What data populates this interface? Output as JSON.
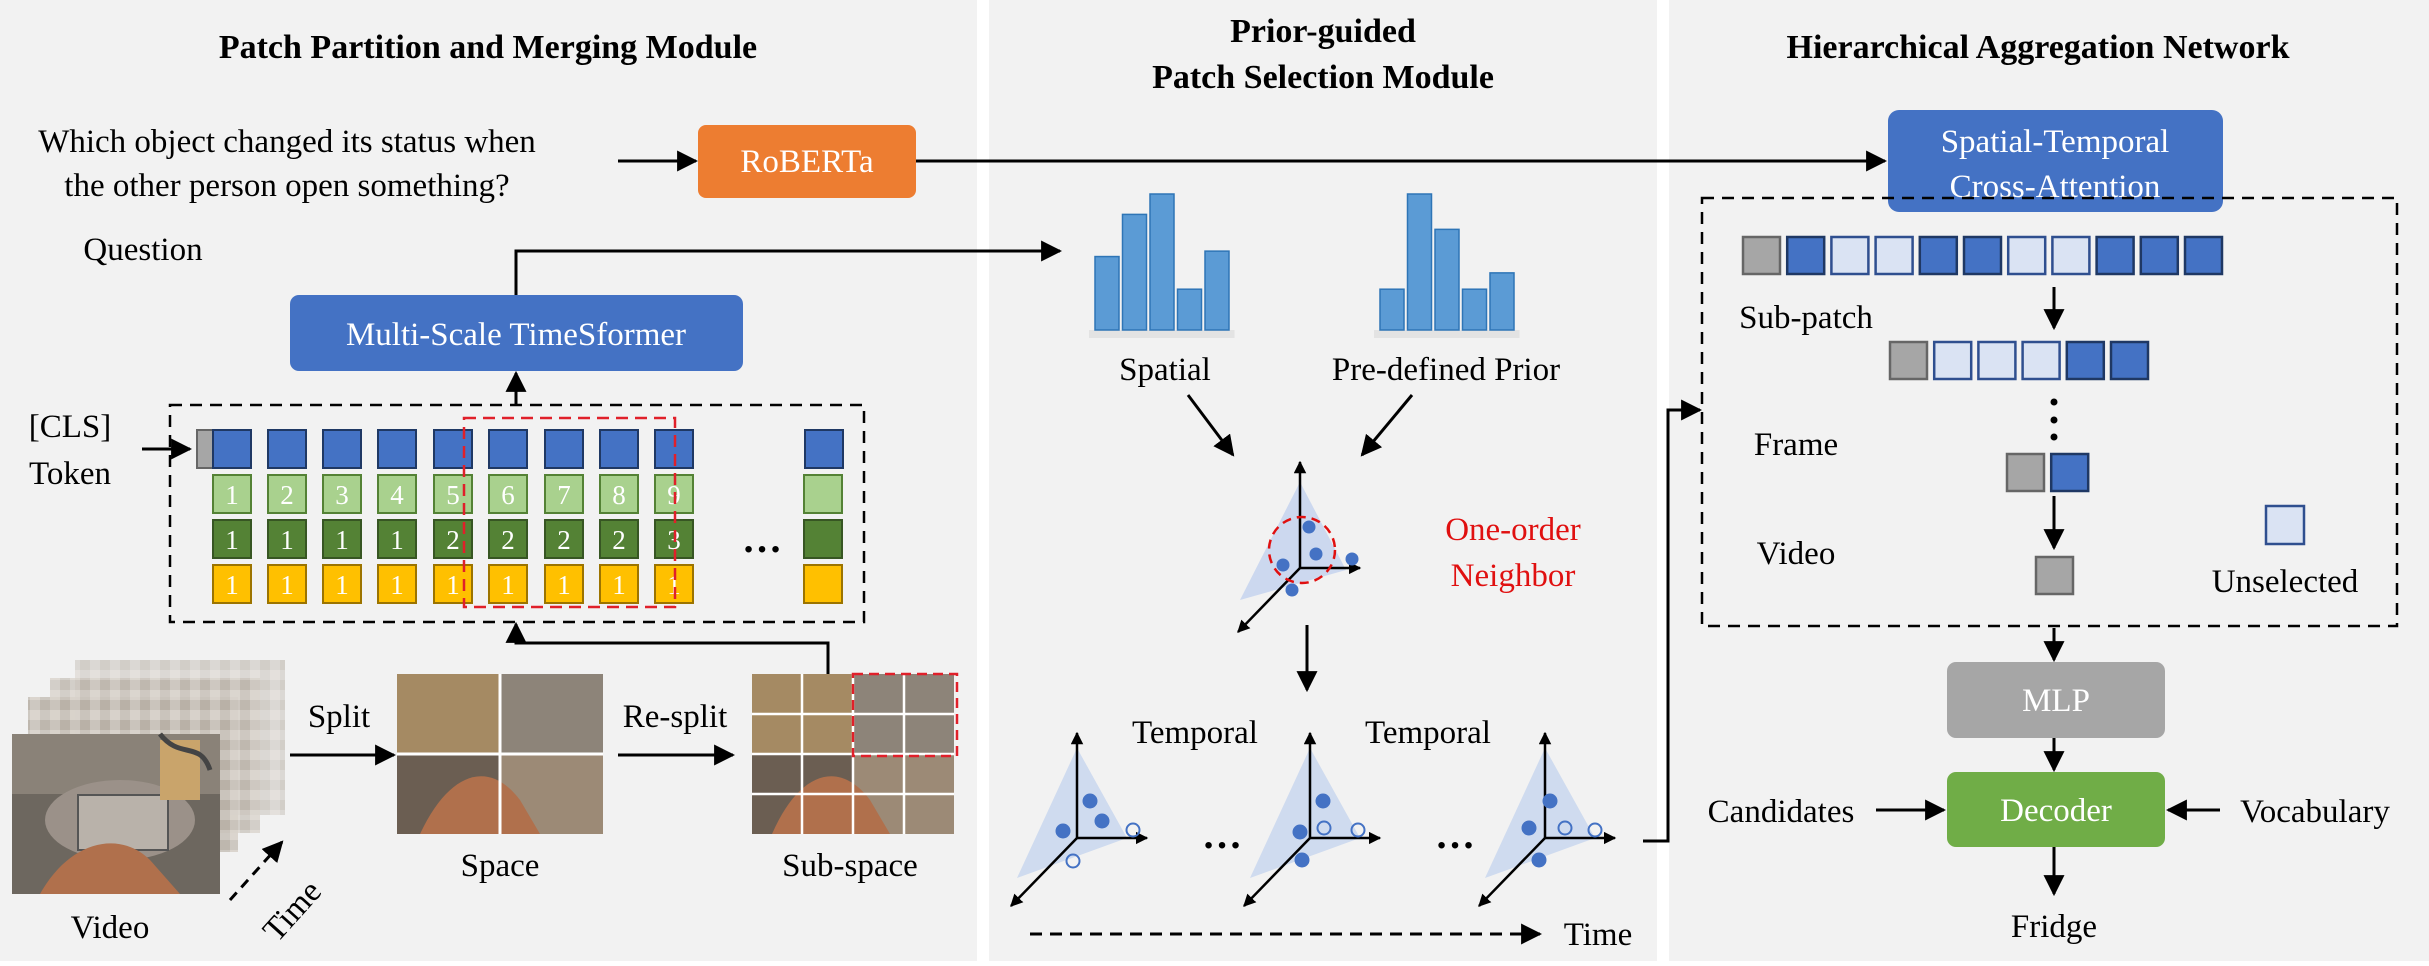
{
  "panels": {
    "left": {
      "title": "Patch Partition and Merging Module"
    },
    "middle": {
      "title_line1": "Prior-guided",
      "title_line2": "Patch Selection Module"
    },
    "right": {
      "title": "Hierarchical Aggregation Network"
    }
  },
  "question": {
    "line1": "Which object changed its status when",
    "line2": "the other person open something?",
    "label": "Question"
  },
  "boxes": {
    "roberta": "RoBERTa",
    "timesformer": "Multi-Scale TimeSformer",
    "cross_attention_line1": "Spatial-Temporal",
    "cross_attention_line2": "Cross-Attention",
    "mlp": "MLP",
    "decoder": "Decoder"
  },
  "tokens": {
    "cls_line1": "[CLS]",
    "cls_line2": "Token",
    "row_light": [
      "1",
      "2",
      "3",
      "4",
      "5",
      "6",
      "7",
      "8",
      "9"
    ],
    "row_mid": [
      "1",
      "1",
      "1",
      "1",
      "2",
      "2",
      "2",
      "2",
      "3"
    ],
    "row_yellow": [
      "1",
      "1",
      "1",
      "1",
      "1",
      "1",
      "1",
      "1",
      "1"
    ],
    "ellipsis": "…"
  },
  "video": {
    "video_label": "Video",
    "time_label": "Time",
    "split_label": "Split",
    "space_label": "Space",
    "resplit_label": "Re-split",
    "subspace_label": "Sub-space"
  },
  "selection": {
    "spatial_label": "Spatial",
    "prior_label": "Pre-defined Prior",
    "neighbor_line1": "One-order",
    "neighbor_line2": "Neighbor",
    "temporal_label_1": "Temporal",
    "temporal_label_2": "Temporal",
    "ellipsis": "…",
    "time_label": "Time",
    "spatial_bars": [
      0.54,
      0.85,
      1.0,
      0.3,
      0.58
    ],
    "prior_bars": [
      0.3,
      1.0,
      0.74,
      0.3,
      0.42
    ]
  },
  "hierarchy": {
    "subpatch_label": "Sub-patch",
    "frame_label": "Frame",
    "video_label": "Video",
    "unselected_label": "Unselected",
    "row1": [
      "gray",
      "dark",
      "light",
      "light",
      "dark",
      "dark",
      "light",
      "light",
      "dark",
      "dark",
      "dark"
    ],
    "row2": [
      "gray",
      "light",
      "light",
      "light",
      "dark",
      "dark"
    ],
    "row3": [
      "gray",
      "dark"
    ],
    "row4": [
      "gray"
    ]
  },
  "output": {
    "candidates_label": "Candidates",
    "vocabulary_label": "Vocabulary",
    "answer_label": "Fridge"
  },
  "colors": {
    "blue_box": "#4472c4",
    "orange_box": "#ed7d31",
    "green_box": "#70ad47",
    "gray_box": "#a6a6a6",
    "light_green": "#a9d18e",
    "mid_green": "#548235",
    "yellow": "#ffc000",
    "red_dash": "#e0202a",
    "neighbor_red": "#e01010",
    "panel_bg": "#f2f2f2",
    "bar_blue": "#5b9bd5"
  }
}
